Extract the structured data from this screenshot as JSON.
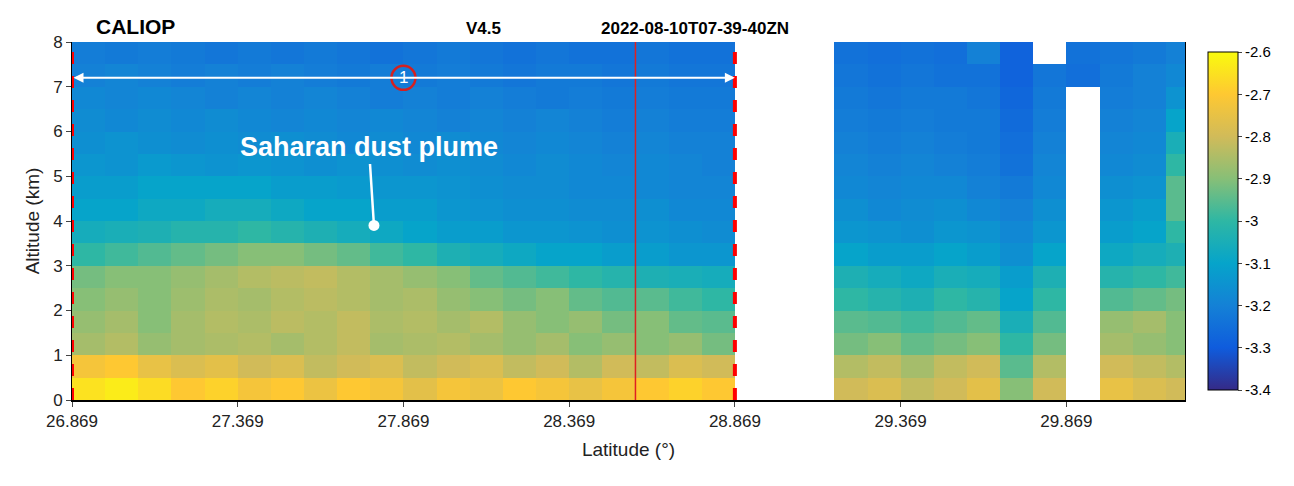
{
  "chart_data": {
    "type": "heatmap",
    "header": {
      "instrument": "CALIOP",
      "version": "V4.5",
      "granule": "2022-08-10T07-39-40ZN"
    },
    "x_label": "Latitude (°)",
    "y_label": "Altitude (km)",
    "x": [
      26.919,
      27.019,
      27.119,
      27.219,
      27.319,
      27.419,
      27.519,
      27.619,
      27.719,
      27.819,
      27.919,
      28.019,
      28.119,
      28.219,
      28.319,
      28.419,
      28.519,
      28.619,
      28.719,
      28.819,
      28.919,
      29.019,
      29.119,
      29.219,
      29.319,
      29.419,
      29.519,
      29.619,
      29.719,
      29.819,
      29.919,
      30.019,
      30.119,
      30.219
    ],
    "y": [
      0.25,
      0.75,
      1.25,
      1.75,
      2.25,
      2.75,
      3.25,
      3.75,
      4.25,
      4.75,
      5.25,
      5.75,
      6.25,
      6.75,
      7.25,
      7.75
    ],
    "z": [
      [
        -2.65,
        -2.63,
        -2.66,
        -2.7,
        -2.68,
        -2.72,
        -2.7,
        -2.74,
        -2.7,
        -2.72,
        -2.76,
        -2.72,
        -2.74,
        -2.7,
        -2.72,
        -2.75,
        -2.72,
        -2.7,
        -2.68,
        -2.7,
        null,
        null,
        null,
        -2.8,
        -2.78,
        -2.82,
        -2.8,
        -2.76,
        -2.9,
        -2.8,
        null,
        -2.75,
        -2.78,
        -2.8
      ],
      [
        -2.72,
        -2.7,
        -2.75,
        -2.78,
        -2.76,
        -2.8,
        -2.78,
        -2.82,
        -2.8,
        -2.78,
        -2.82,
        -2.8,
        -2.78,
        -2.82,
        -2.8,
        -2.84,
        -2.8,
        -2.82,
        -2.78,
        -2.8,
        null,
        null,
        null,
        -2.84,
        -2.82,
        -2.86,
        -2.82,
        -2.8,
        -2.95,
        -2.84,
        null,
        -2.8,
        -2.82,
        -2.84
      ],
      [
        -2.86,
        -2.84,
        -2.88,
        -2.86,
        -2.85,
        -2.84,
        -2.86,
        -2.84,
        -2.82,
        -2.86,
        -2.85,
        -2.84,
        -2.86,
        -2.88,
        -2.86,
        -2.9,
        -2.88,
        -2.9,
        -2.88,
        -2.92,
        null,
        null,
        null,
        -2.92,
        -2.9,
        -2.94,
        -2.92,
        -2.9,
        -3.0,
        -2.92,
        null,
        -2.86,
        -2.88,
        -2.9
      ],
      [
        -2.88,
        -2.86,
        -2.9,
        -2.86,
        -2.84,
        -2.85,
        -2.83,
        -2.84,
        -2.82,
        -2.85,
        -2.84,
        -2.86,
        -2.84,
        -2.88,
        -2.9,
        -2.88,
        -2.92,
        -2.9,
        -2.94,
        -2.95,
        null,
        null,
        null,
        -2.95,
        -2.96,
        -2.98,
        -2.96,
        -2.94,
        -3.05,
        -2.96,
        null,
        -2.88,
        -2.86,
        -2.9
      ],
      [
        -2.9,
        -2.88,
        -2.9,
        -2.87,
        -2.85,
        -2.86,
        -2.84,
        -2.83,
        -2.84,
        -2.86,
        -2.85,
        -2.88,
        -2.9,
        -2.92,
        -2.9,
        -2.94,
        -2.96,
        -2.95,
        -2.98,
        -3.0,
        null,
        null,
        null,
        -3.0,
        -3.02,
        -3.04,
        -3.0,
        -3.02,
        -3.1,
        -3.0,
        null,
        -2.96,
        -2.94,
        -2.92
      ],
      [
        -2.92,
        -2.9,
        -2.9,
        -2.88,
        -2.86,
        -2.84,
        -2.83,
        -2.82,
        -2.84,
        -2.86,
        -2.88,
        -2.9,
        -2.94,
        -2.96,
        -2.98,
        -3.0,
        -3.02,
        -3.04,
        -3.05,
        -3.06,
        null,
        null,
        null,
        -3.04,
        -3.06,
        -3.08,
        -3.05,
        -3.06,
        -3.12,
        -3.04,
        null,
        -3.02,
        -3.0,
        -2.98
      ],
      [
        -3.0,
        -2.98,
        -2.96,
        -2.94,
        -2.92,
        -2.9,
        -2.9,
        -2.92,
        -2.94,
        -2.98,
        -3.0,
        -3.04,
        -3.06,
        -3.08,
        -3.1,
        -3.1,
        -3.12,
        -3.12,
        -3.14,
        -3.14,
        null,
        null,
        null,
        -3.1,
        -3.12,
        -3.12,
        -3.1,
        -3.12,
        -3.16,
        -3.1,
        null,
        -3.08,
        -3.06,
        -3.04
      ],
      [
        -3.06,
        -3.05,
        -3.04,
        -3.02,
        -3.02,
        -3.0,
        -3.02,
        -3.04,
        -3.06,
        -3.08,
        -3.1,
        -3.12,
        -3.12,
        -3.14,
        -3.14,
        -3.15,
        -3.16,
        -3.15,
        -3.16,
        -3.17,
        null,
        null,
        null,
        -3.14,
        -3.15,
        -3.16,
        -3.14,
        -3.15,
        -3.18,
        -3.14,
        null,
        -3.12,
        -3.1,
        -3.0
      ],
      [
        -3.1,
        -3.1,
        -3.08,
        -3.08,
        -3.06,
        -3.06,
        -3.08,
        -3.1,
        -3.1,
        -3.12,
        -3.12,
        -3.14,
        -3.15,
        -3.16,
        -3.16,
        -3.17,
        -3.17,
        -3.16,
        -3.18,
        -3.18,
        null,
        null,
        null,
        -3.16,
        -3.18,
        -3.17,
        -3.16,
        -3.18,
        -3.2,
        -3.16,
        null,
        -3.14,
        -3.12,
        -2.95
      ],
      [
        -3.12,
        -3.12,
        -3.1,
        -3.1,
        -3.1,
        -3.1,
        -3.12,
        -3.12,
        -3.13,
        -3.14,
        -3.14,
        -3.15,
        -3.16,
        -3.17,
        -3.17,
        -3.18,
        -3.18,
        -3.18,
        -3.19,
        -3.19,
        null,
        null,
        null,
        -3.18,
        -3.19,
        -3.18,
        -3.18,
        -3.2,
        -3.22,
        -3.18,
        null,
        -3.16,
        -3.15,
        -2.95
      ],
      [
        -3.14,
        -3.15,
        -3.13,
        -3.14,
        -3.15,
        -3.14,
        -3.15,
        -3.16,
        -3.15,
        -3.16,
        -3.17,
        -3.16,
        -3.17,
        -3.18,
        -3.17,
        -3.18,
        -3.19,
        -3.18,
        -3.19,
        -3.2,
        null,
        null,
        null,
        -3.19,
        -3.2,
        -3.19,
        -3.2,
        -3.21,
        -3.24,
        -3.19,
        null,
        -3.18,
        -3.17,
        -3.0
      ],
      [
        -3.16,
        -3.15,
        -3.16,
        -3.17,
        -3.16,
        -3.17,
        -3.16,
        -3.17,
        -3.18,
        -3.17,
        -3.18,
        -3.17,
        -3.18,
        -3.19,
        -3.18,
        -3.19,
        -3.2,
        -3.19,
        -3.2,
        -3.2,
        null,
        null,
        null,
        -3.2,
        -3.21,
        -3.2,
        -3.21,
        -3.22,
        -3.25,
        -3.2,
        null,
        -3.19,
        -3.18,
        -3.05
      ],
      [
        -3.17,
        -3.18,
        -3.17,
        -3.18,
        -3.17,
        -3.18,
        -3.19,
        -3.18,
        -3.19,
        -3.18,
        -3.19,
        -3.2,
        -3.19,
        -3.2,
        -3.19,
        -3.2,
        -3.21,
        -3.2,
        -3.21,
        -3.21,
        null,
        null,
        null,
        -3.21,
        -3.22,
        -3.21,
        -3.22,
        -3.22,
        -3.26,
        -3.21,
        null,
        -3.2,
        -3.19,
        -3.1
      ],
      [
        -3.18,
        -3.19,
        -3.18,
        -3.19,
        -3.2,
        -3.19,
        -3.2,
        -3.19,
        -3.2,
        -3.21,
        -3.2,
        -3.21,
        -3.2,
        -3.21,
        -3.22,
        -3.21,
        -3.22,
        -3.21,
        -3.22,
        -3.22,
        null,
        null,
        null,
        -3.22,
        -3.23,
        -3.22,
        -3.22,
        -3.23,
        -3.27,
        -3.22,
        null,
        -3.21,
        -3.2,
        -3.15
      ],
      [
        -3.2,
        -3.19,
        -3.2,
        -3.21,
        -3.2,
        -3.21,
        -3.2,
        -3.21,
        -3.22,
        -3.21,
        -3.22,
        -3.21,
        -3.22,
        -3.23,
        -3.22,
        -3.22,
        -3.23,
        -3.22,
        -3.23,
        -3.23,
        null,
        null,
        null,
        -3.23,
        -3.24,
        -3.23,
        -3.24,
        -3.24,
        -3.28,
        -3.23,
        -3.25,
        -3.22,
        -3.2,
        -3.18
      ],
      [
        -3.21,
        -3.22,
        -3.21,
        -3.22,
        -3.23,
        -3.22,
        -3.23,
        -3.22,
        -3.23,
        -3.24,
        -3.23,
        -3.22,
        -3.23,
        -3.24,
        -3.23,
        -3.24,
        -3.24,
        -3.23,
        -3.24,
        -3.24,
        null,
        null,
        null,
        -3.24,
        -3.25,
        -3.24,
        -3.25,
        -3.2,
        -3.28,
        null,
        -3.24,
        -3.23,
        -3.22,
        -3.2
      ]
    ],
    "xlim": [
      26.869,
      30.227
    ],
    "xticks": [
      26.869,
      27.369,
      27.869,
      28.369,
      28.869,
      29.369,
      29.869
    ],
    "ylim": [
      0,
      8
    ],
    "yticks": [
      0,
      1,
      2,
      3,
      4,
      5,
      6,
      7,
      8
    ],
    "colorbar": {
      "range": [
        -3.4,
        -2.6
      ],
      "ticks": [
        -3.4,
        -3.3,
        -3.2,
        -3.1,
        -3,
        -2.9,
        -2.8,
        -2.7,
        -2.6
      ]
    },
    "sections": [
      {
        "label": "1",
        "start": 26.869,
        "end": 28.869,
        "y": 7.2
      }
    ],
    "vertical_lines": [
      28.569
    ],
    "annotations": [
      {
        "text": "Saharan dust plume",
        "x": 27.78,
        "y": 3.9
      }
    ]
  }
}
